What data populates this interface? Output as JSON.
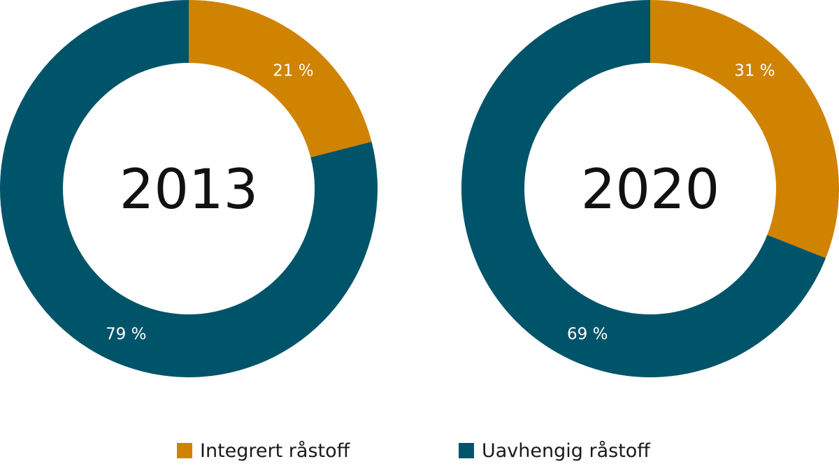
{
  "chart_data": {
    "type": "pie",
    "subtype": "donut",
    "charts": [
      {
        "title": "2013",
        "slices": [
          {
            "name": "Integrert råstoff",
            "value": 21,
            "label": "21 %"
          },
          {
            "name": "Uavhengig råstoff",
            "value": 79,
            "label": "79 %"
          }
        ]
      },
      {
        "title": "2020",
        "slices": [
          {
            "name": "Integrert råstoff",
            "value": 31,
            "label": "31 %"
          },
          {
            "name": "Uavhengig råstoff",
            "value": 69,
            "label": "69 %"
          }
        ]
      }
    ],
    "legend": [
      "Integrert råstoff",
      "Uavhengig råstoff"
    ],
    "legend_position": "bottom",
    "colors": {
      "Integrert råstoff": "#D08300",
      "Uavhengig råstoff": "#005469"
    }
  },
  "legend": {
    "items": [
      {
        "label": "Integrert råstoff",
        "color": "#D08300"
      },
      {
        "label": "Uavhengig råstoff",
        "color": "#005469"
      }
    ]
  }
}
